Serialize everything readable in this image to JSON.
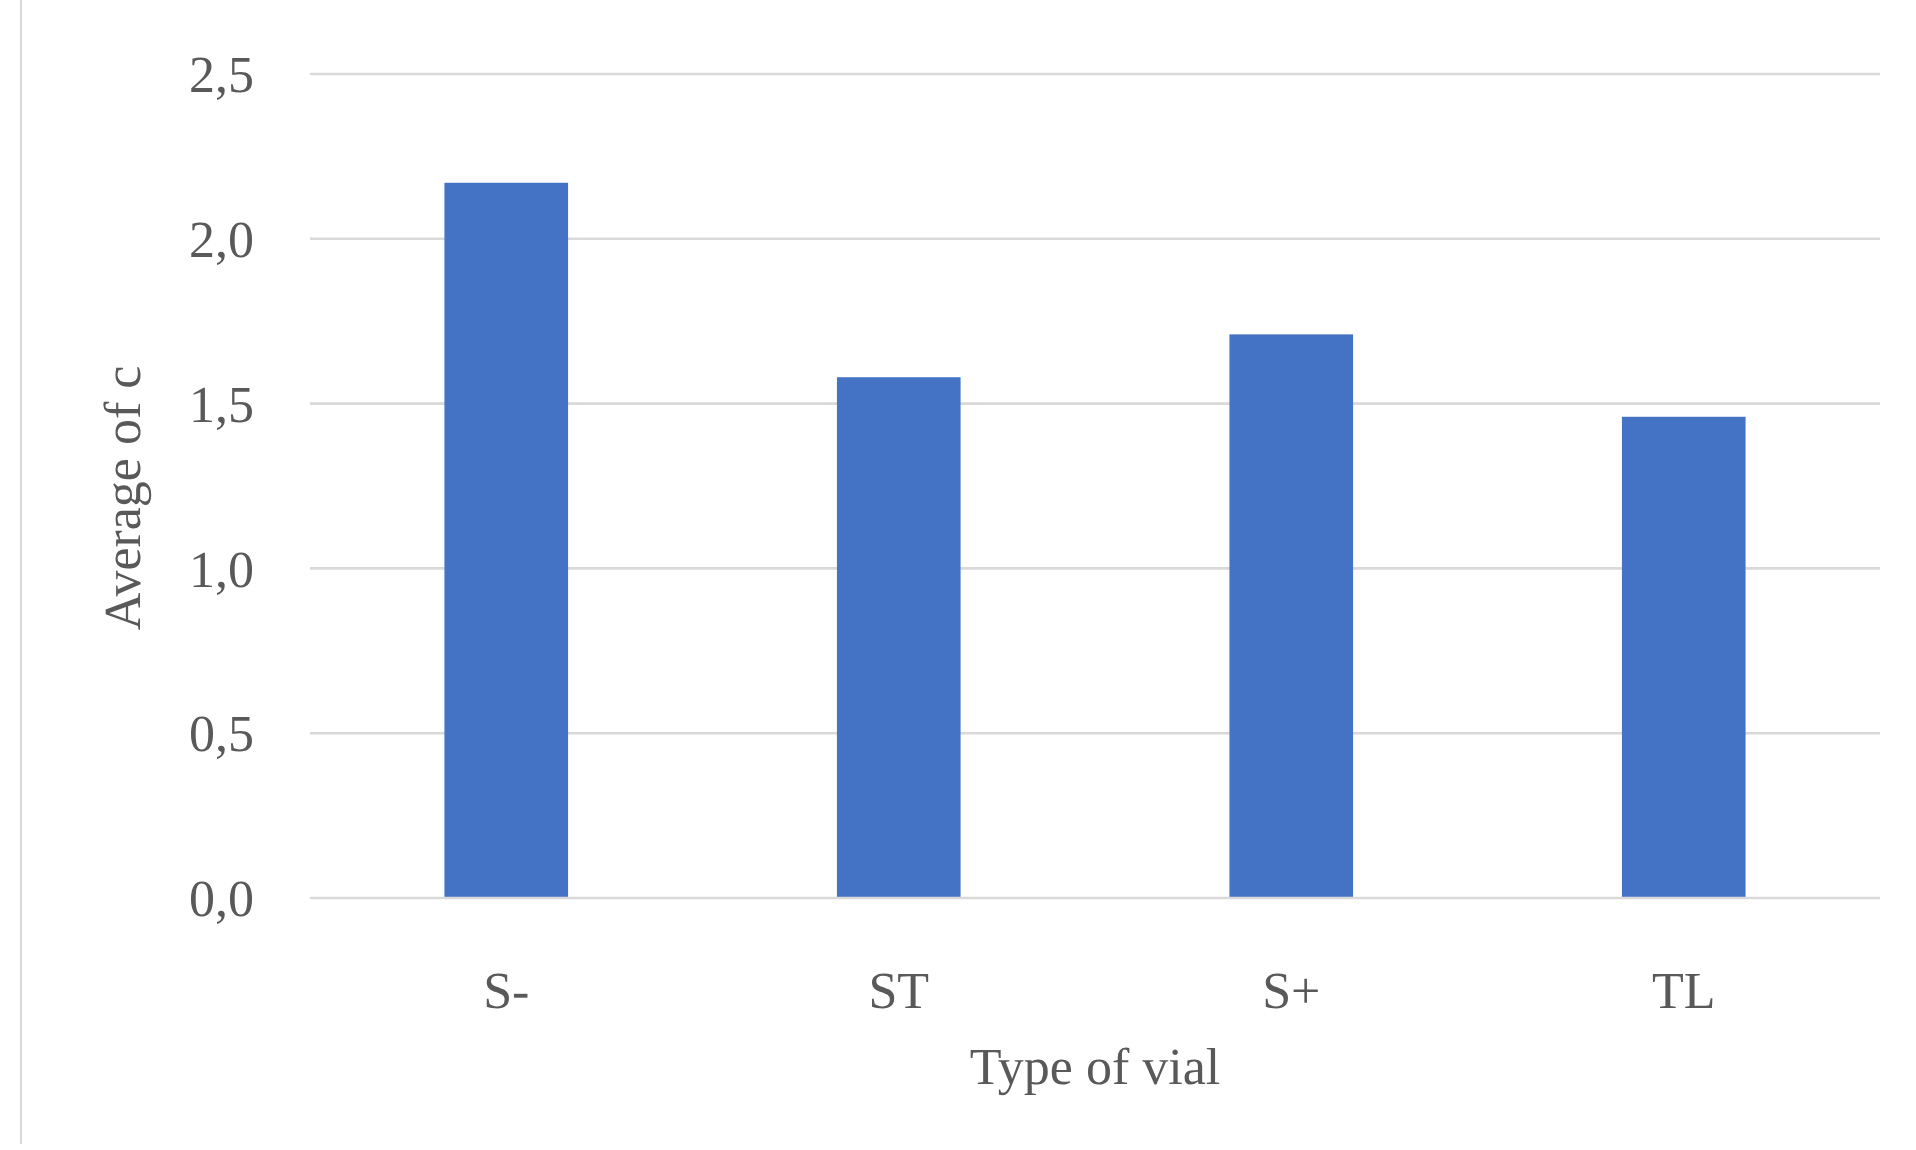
{
  "chart_data": {
    "type": "bar",
    "categories": [
      "S-",
      "ST",
      "S+",
      "TL"
    ],
    "values": [
      2.17,
      1.58,
      1.71,
      1.46
    ],
    "color": "#4472c4",
    "xlabel": "Type of vial",
    "ylabel": "Average of c",
    "ylim": [
      0,
      2.5
    ],
    "yticks": [
      {
        "value": 0,
        "label": "0,0"
      },
      {
        "value": 0.5,
        "label": "0,5"
      },
      {
        "value": 1,
        "label": "1,0"
      },
      {
        "value": 1.5,
        "label": "1,5"
      },
      {
        "value": 2,
        "label": "2,0"
      },
      {
        "value": 2.5,
        "label": "2,5"
      }
    ],
    "grid": "y"
  }
}
